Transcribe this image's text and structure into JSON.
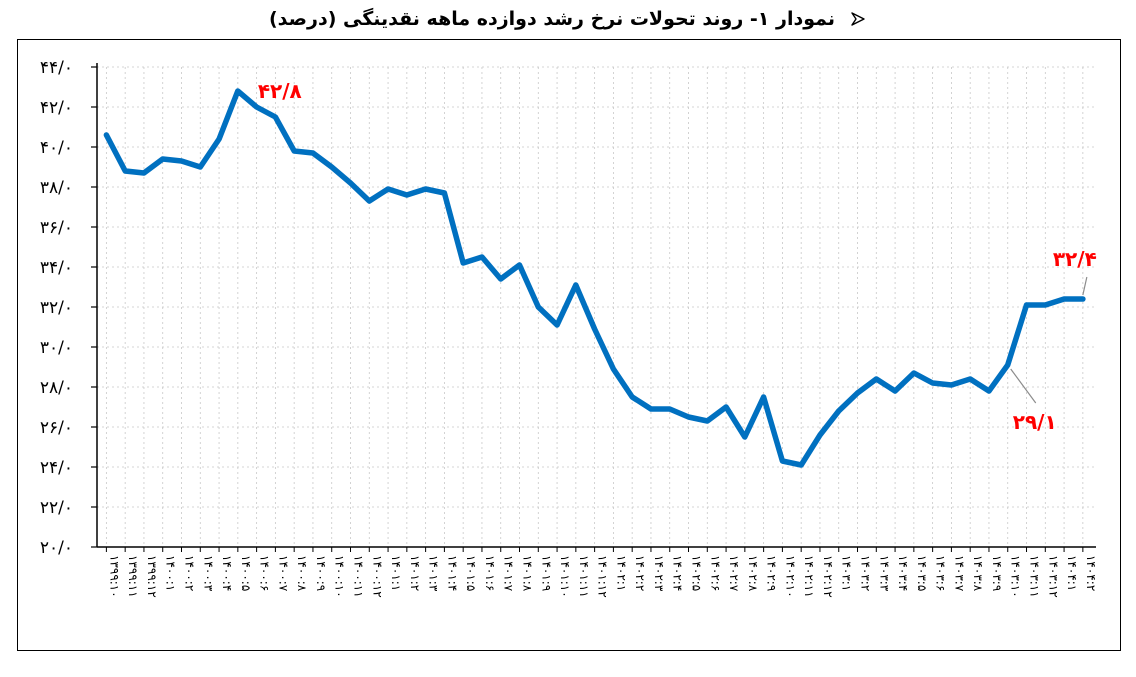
{
  "header": {
    "title": "نمودار ۱- روند تحولات نرخ رشد دوازده ماهه نقدینگی (درصد)",
    "bullet_icon": "arrow-bullet-icon"
  },
  "chart_data": {
    "type": "line",
    "title": "نمودار ۱- روند تحولات نرخ رشد دوازده ماهه نقدینگی (درصد)",
    "xlabel": "",
    "ylabel": "",
    "ylim": [
      20,
      44
    ],
    "grid": true,
    "color": "#0070C0",
    "x": [
      "۱۳۹۹:۱۰",
      "۱۳۹۹:۱۱",
      "۱۳۹۹:۱۲",
      "۱۴۰۰:۱",
      "۱۴۰۰:۲",
      "۱۴۰۰:۳",
      "۱۴۰۰:۴",
      "۱۴۰۰:۵",
      "۱۴۰۰:۶",
      "۱۴۰۰:۷",
      "۱۴۰۰:۸",
      "۱۴۰۰:۹",
      "۱۴۰۰:۱۰",
      "۱۴۰۰:۱۱",
      "۱۴۰۰:۱۲",
      "۱۴۰۱:۱",
      "۱۴۰۱:۲",
      "۱۴۰۱:۳",
      "۱۴۰۱:۴",
      "۱۴۰۱:۵",
      "۱۴۰۱:۶",
      "۱۴۰۱:۷",
      "۱۴۰۱:۸",
      "۱۴۰۱:۹",
      "۱۴۰۱:۱۰",
      "۱۴۰۱:۱۱",
      "۱۴۰۱:۱۲",
      "۱۴۰۲:۱",
      "۱۴۰۲:۲",
      "۱۴۰۲:۳",
      "۱۴۰۲:۴",
      "۱۴۰۲:۵",
      "۱۴۰۲:۶",
      "۱۴۰۲:۷",
      "۱۴۰۲:۸",
      "۱۴۰۲:۹",
      "۱۴۰۲:۱۰",
      "۱۴۰۲:۱۱",
      "۱۴۰۲:۱۲",
      "۱۴۰۳:۱",
      "۱۴۰۳:۲",
      "۱۴۰۳:۳",
      "۱۴۰۳:۴",
      "۱۴۰۳:۵",
      "۱۴۰۳:۶",
      "۱۴۰۳:۷",
      "۱۴۰۳:۸",
      "۱۴۰۳:۹",
      "۱۴۰۳:۱۰",
      "۱۴۰۳:۱۱",
      "۱۴۰۳:۱۲",
      "۱۴۰۴:۱",
      "۱۴۰۴:۲"
    ],
    "values": [
      40.6,
      38.8,
      38.7,
      39.4,
      39.3,
      39.0,
      40.4,
      42.8,
      42.0,
      41.5,
      39.8,
      39.7,
      39.0,
      38.2,
      37.3,
      37.9,
      37.6,
      37.9,
      37.7,
      34.2,
      34.5,
      33.4,
      34.1,
      32.0,
      31.1,
      33.1,
      30.9,
      28.9,
      27.5,
      26.9,
      26.9,
      26.5,
      26.3,
      27.0,
      25.5,
      27.5,
      24.3,
      24.1,
      25.6,
      26.8,
      27.7,
      28.4,
      27.8,
      28.7,
      28.2,
      28.1,
      28.4,
      27.8,
      29.1,
      32.1,
      32.1,
      32.4,
      32.4
    ],
    "yticks": [
      "۲۰/۰",
      "۲۲/۰",
      "۲۴/۰",
      "۲۶/۰",
      "۲۸/۰",
      "۳۰/۰",
      "۳۲/۰",
      "۳۴/۰",
      "۳۶/۰",
      "۳۸/۰",
      "۴۰/۰",
      "۴۲/۰",
      "۴۴/۰"
    ],
    "annotations": [
      {
        "text": "۴۲/۸",
        "index": 7,
        "value": 42.8,
        "color": "#FF0000"
      },
      {
        "text": "۲۹/۱",
        "index": 48,
        "value": 29.1,
        "color": "#FF0000"
      },
      {
        "text": "۳۲/۴",
        "index": 52,
        "value": 32.4,
        "color": "#FF0000"
      }
    ]
  }
}
